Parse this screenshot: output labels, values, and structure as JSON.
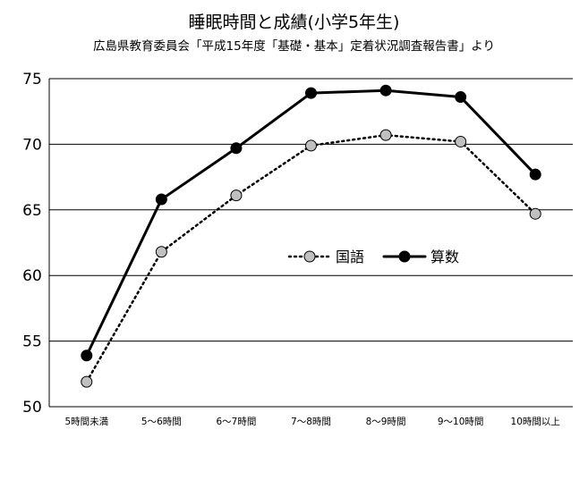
{
  "chart_data": {
    "type": "line",
    "title": "睡眠時間と成績(小学5年生)",
    "subtitle": "広島県教育委員会「平成15年度「基礎・基本」定着状況調査報告書」より",
    "categories": [
      "5時間未満",
      "5～6時間",
      "6～7時間",
      "7～8時間",
      "8～9時間",
      "9～10時間",
      "10時間以上"
    ],
    "series": [
      {
        "name": "国語",
        "values": [
          51.9,
          61.8,
          66.1,
          69.9,
          70.7,
          70.2,
          64.7
        ],
        "color": "#c0c0c0",
        "style": "dotted"
      },
      {
        "name": "算数",
        "values": [
          53.9,
          65.8,
          69.7,
          73.9,
          74.1,
          73.6,
          67.7
        ],
        "color": "#000000",
        "style": "solid"
      }
    ],
    "ylim": [
      50,
      75
    ],
    "yticks": [
      50,
      55,
      60,
      65,
      70,
      75
    ],
    "xlabel": "",
    "ylabel": "",
    "grid": true,
    "legend_position": "center-right"
  }
}
